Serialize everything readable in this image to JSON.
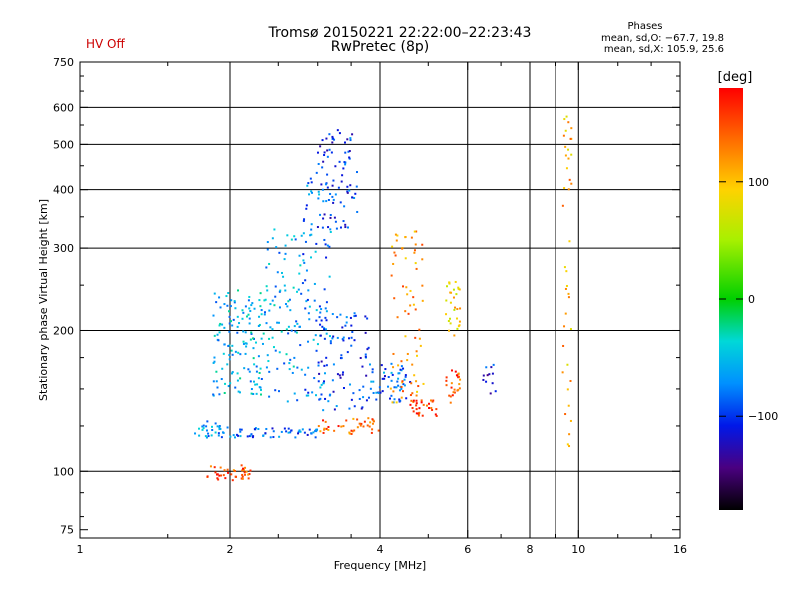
{
  "header": {
    "title_line1": "Tromsø 20150221 22:22:00–22:23:43",
    "title_line2": "RwPretec (8p)",
    "status": "HV Off",
    "status_color": "#cc0000",
    "stats_title": "Phases",
    "stats_o": "mean, sd,O: −67.7, 19.8",
    "stats_x": "mean, sd,X: 105.9, 25.6"
  },
  "chart_data": {
    "type": "scatter",
    "title": "Tromsø 20150221 22:22:00–22:23:43",
    "subtitle": "RwPretec (8p)",
    "xlabel": "Frequency [MHz]",
    "ylabel": "Stationary phase Virtual Height [km]",
    "x_scale": "log",
    "y_scale": "log",
    "xlim": [
      1,
      16
    ],
    "ylim": [
      72,
      750
    ],
    "x_ticks": [
      1,
      2,
      4,
      6,
      8,
      10,
      16
    ],
    "x_tick_labels": [
      "1",
      "2",
      "4",
      "6",
      "8",
      "10",
      "16"
    ],
    "x_minor_ticks": [
      1.5,
      2.5,
      3,
      3.5,
      5,
      7,
      9,
      12,
      14
    ],
    "y_ticks": [
      75,
      100,
      200,
      300,
      400,
      500,
      600,
      750
    ],
    "y_tick_labels": [
      "75",
      "100",
      "200",
      "300",
      "400",
      "500",
      "600",
      "750"
    ],
    "y_minor_ticks": [
      80,
      90,
      125,
      150,
      175,
      250,
      350,
      450,
      550,
      650,
      700
    ],
    "grid_x": [
      2,
      4,
      6,
      8,
      10
    ],
    "grid_x_thin": [
      9
    ],
    "grid_y": [
      100,
      200,
      300,
      400,
      500,
      600
    ],
    "grid": true,
    "colorbar": {
      "label": "[deg]",
      "ticks": [
        100,
        0,
        -100
      ],
      "tick_labels": [
        "100",
        "0",
        "−100"
      ],
      "range": [
        -180,
        180
      ]
    },
    "clusters": [
      {
        "x": [
          1.8,
          2.2
        ],
        "y": [
          95,
          103
        ],
        "phase": 150,
        "n": 40
      },
      {
        "x": [
          1.7,
          2.0
        ],
        "y": [
          118,
          128
        ],
        "phase": -70,
        "n": 30
      },
      {
        "x": [
          2.0,
          3.0
        ],
        "y": [
          118,
          124
        ],
        "phase": -85,
        "n": 55
      },
      {
        "x": [
          1.85,
          2.35
        ],
        "y": [
          145,
          245
        ],
        "phase": -55,
        "n": 140
      },
      {
        "x": [
          2.35,
          2.8
        ],
        "y": [
          140,
          330
        ],
        "phase": -60,
        "n": 90
      },
      {
        "x": [
          2.8,
          3.2
        ],
        "y": [
          140,
          440
        ],
        "phase": -75,
        "n": 95
      },
      {
        "x": [
          3.0,
          3.6
        ],
        "y": [
          330,
          540
        ],
        "phase": -100,
        "n": 80
      },
      {
        "x": [
          3.0,
          3.8
        ],
        "y": [
          135,
          220
        ],
        "phase": -95,
        "n": 80
      },
      {
        "x": [
          3.0,
          4.0
        ],
        "y": [
          120,
          130
        ],
        "phase": 140,
        "n": 40
      },
      {
        "x": [
          3.8,
          4.6
        ],
        "y": [
          140,
          170
        ],
        "phase": -85,
        "n": 55
      },
      {
        "x": [
          4.2,
          4.9
        ],
        "y": [
          140,
          330
        ],
        "phase": 120,
        "n": 70
      },
      {
        "x": [
          4.6,
          5.2
        ],
        "y": [
          130,
          142
        ],
        "phase": 160,
        "n": 30
      },
      {
        "x": [
          5.4,
          5.8
        ],
        "y": [
          195,
          255
        ],
        "phase": 90,
        "n": 30
      },
      {
        "x": [
          5.4,
          5.8
        ],
        "y": [
          135,
          165
        ],
        "phase": 150,
        "n": 25
      },
      {
        "x": [
          6.4,
          6.9
        ],
        "y": [
          145,
          170
        ],
        "phase": -110,
        "n": 12
      },
      {
        "x": [
          9.3,
          9.7
        ],
        "y": [
          110,
          600
        ],
        "phase": 110,
        "n": 40
      }
    ]
  }
}
